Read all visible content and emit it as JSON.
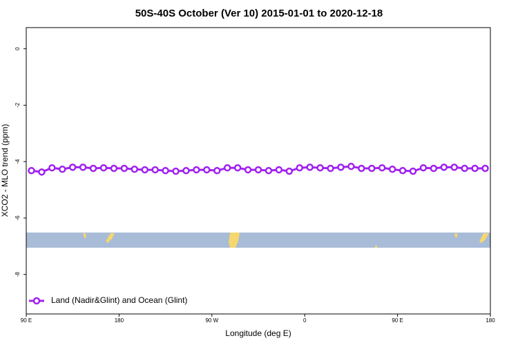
{
  "chart_data": {
    "type": "line",
    "title": "50S-40S October (Ver 10)   2015-01-01 to 2020-12-18",
    "x_label": "Longitude (deg E)",
    "y_label": "XCO2 - MLO trend (ppm)",
    "x": [
      95,
      105,
      115,
      125,
      135,
      145,
      155,
      165,
      175,
      185,
      195,
      205,
      215,
      225,
      235,
      245,
      255,
      265,
      275,
      285,
      295,
      305,
      315,
      325,
      335,
      345,
      355,
      365,
      375,
      385,
      395,
      405,
      415,
      425,
      435,
      445,
      455,
      465,
      475,
      485,
      495,
      505,
      515,
      525,
      535
    ],
    "series": [
      {
        "name": "Land (Nadir&Glint) and Ocean (Glint)",
        "color": "#a020f0",
        "values": [
          -4.32,
          -4.37,
          -4.22,
          -4.27,
          -4.2,
          -4.2,
          -4.24,
          -4.22,
          -4.24,
          -4.24,
          -4.27,
          -4.29,
          -4.29,
          -4.32,
          -4.34,
          -4.32,
          -4.29,
          -4.29,
          -4.32,
          -4.22,
          -4.22,
          -4.29,
          -4.29,
          -4.32,
          -4.29,
          -4.34,
          -4.22,
          -4.2,
          -4.22,
          -4.24,
          -4.2,
          -4.17,
          -4.24,
          -4.24,
          -4.22,
          -4.27,
          -4.32,
          -4.34,
          -4.22,
          -4.24,
          -4.2,
          -4.2,
          -4.24,
          -4.24,
          -4.24
        ]
      }
    ],
    "xlim": [
      90,
      540
    ],
    "xticks": [
      {
        "value": 90,
        "label": "90 E"
      },
      180,
      {
        "value": 270,
        "label": "90 W"
      },
      {
        "value": 360,
        "label": "0"
      },
      {
        "value": 450,
        "label": "90 E"
      },
      {
        "value": 540,
        "label": "180"
      }
    ],
    "ylim": [
      -9.4,
      0.75
    ],
    "yticks": [
      0,
      -2,
      -4,
      -6,
      -8
    ],
    "legend": "bottom-left"
  }
}
